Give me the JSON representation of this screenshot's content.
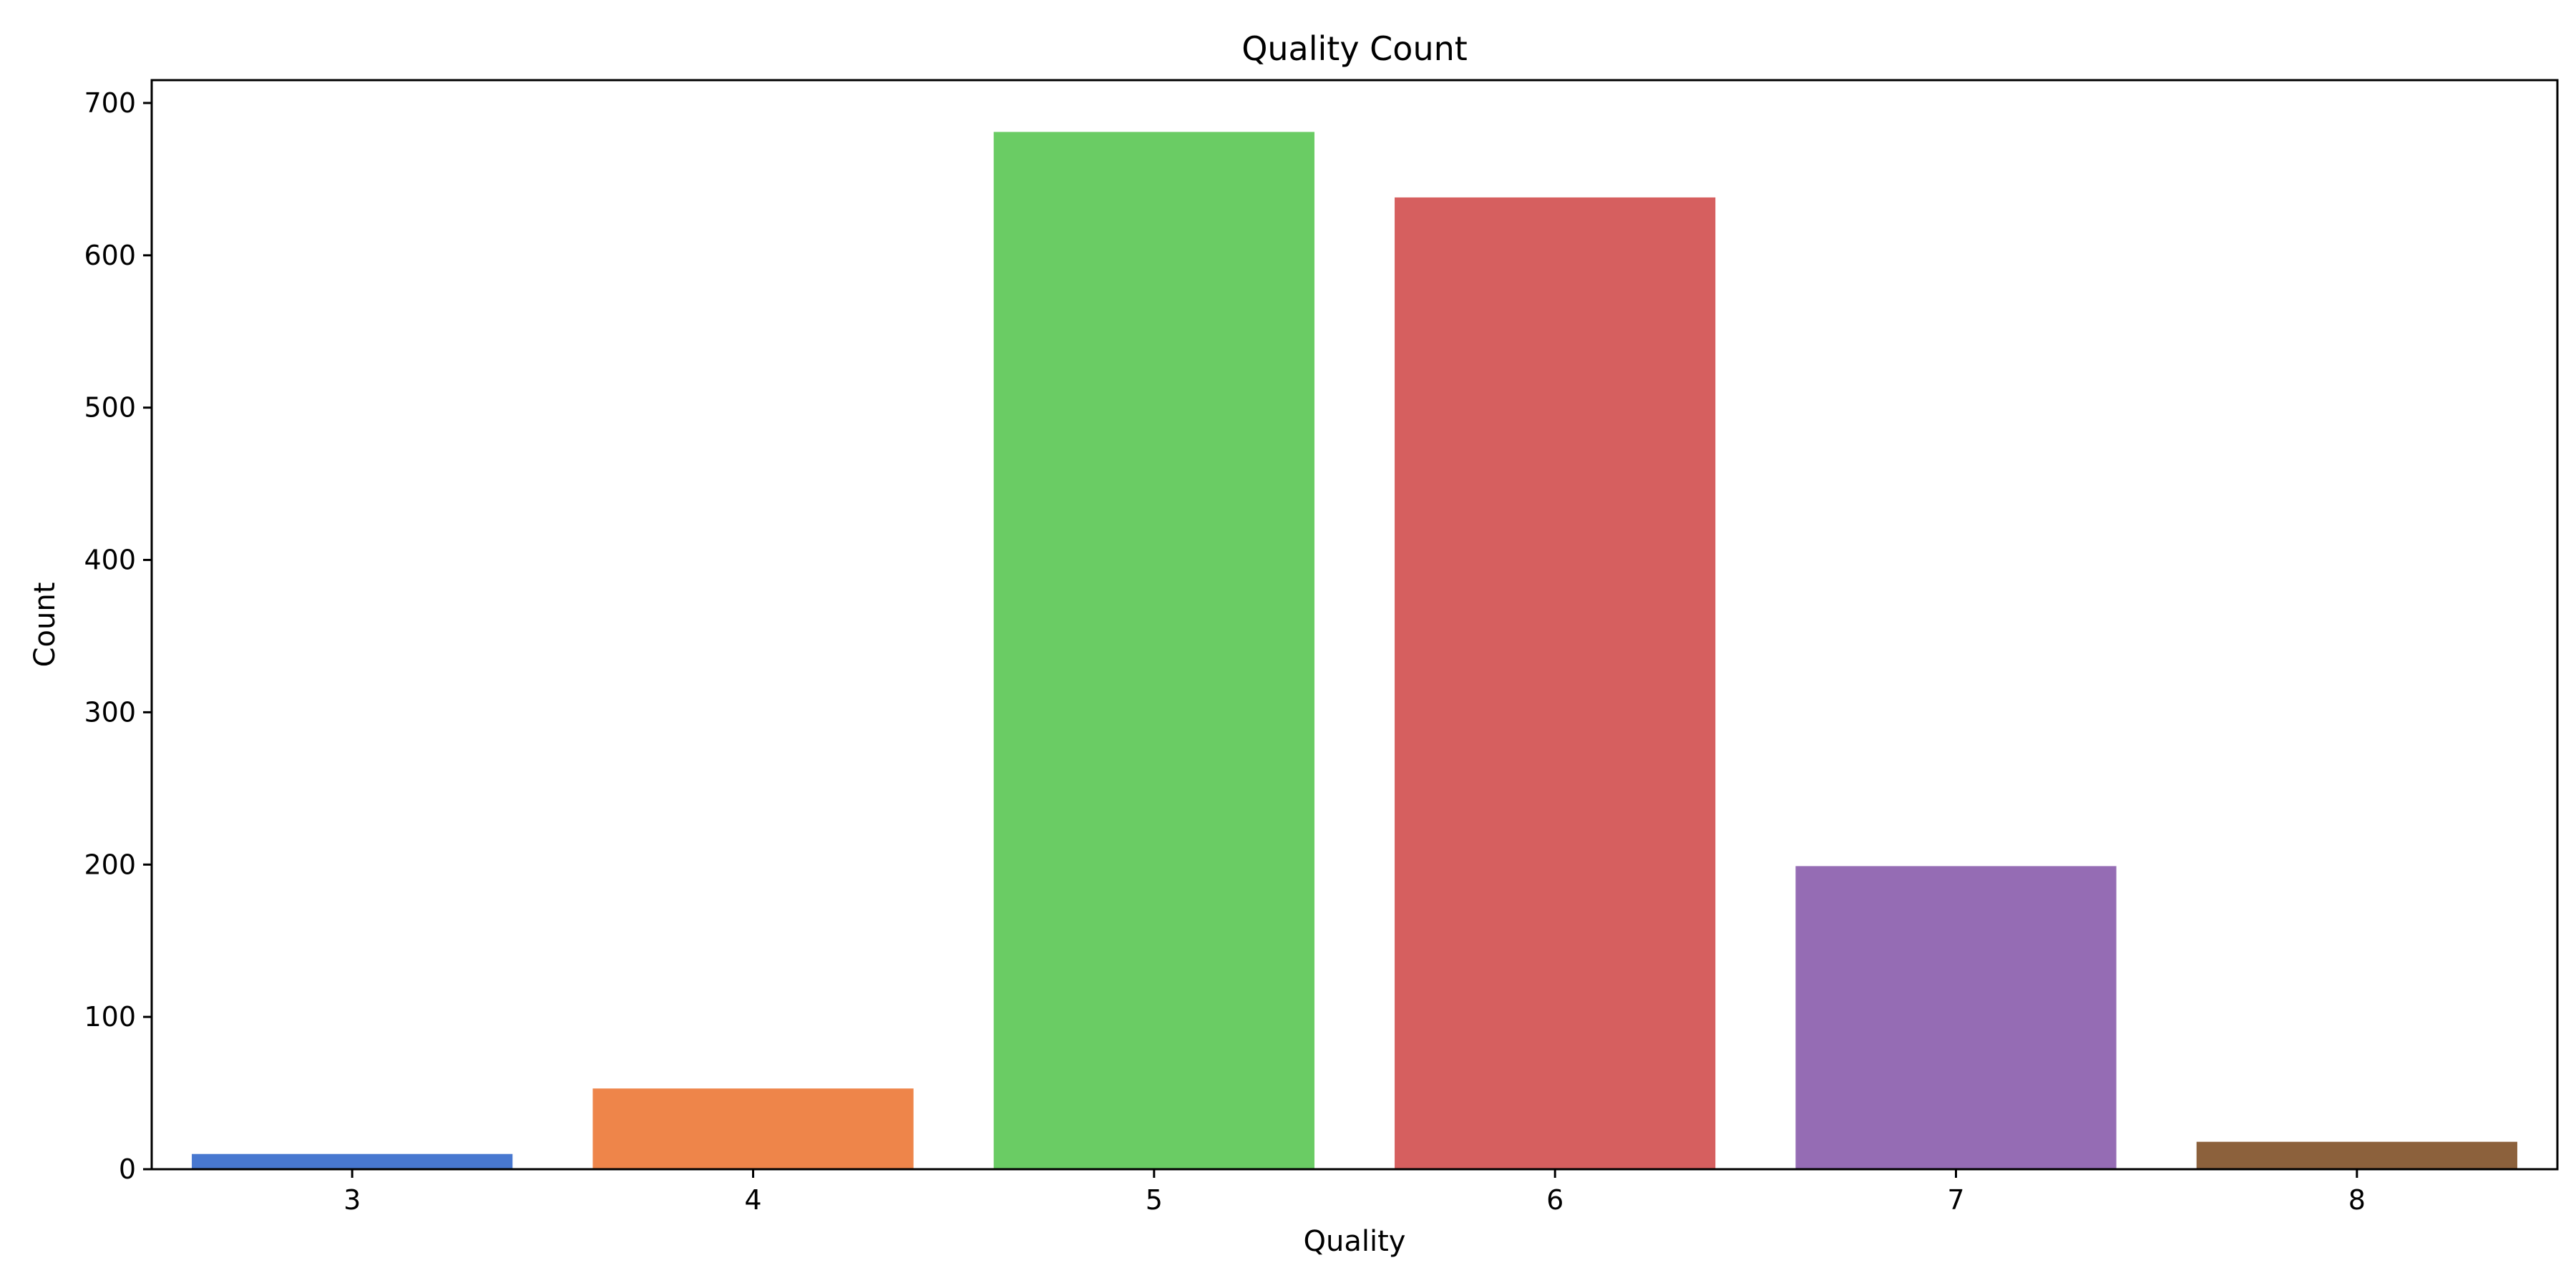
{
  "chart_data": {
    "type": "bar",
    "title": "Quality Count",
    "xlabel": "Quality",
    "ylabel": "Count",
    "categories": [
      "3",
      "4",
      "5",
      "6",
      "7",
      "8"
    ],
    "values": [
      10,
      53,
      681,
      638,
      199,
      18
    ],
    "colors": [
      "#4878d0",
      "#ee854a",
      "#6acc64",
      "#d65f5f",
      "#956cb4",
      "#8c613c"
    ],
    "ylim": [
      0,
      715
    ],
    "yticks": [
      0,
      100,
      200,
      300,
      400,
      500,
      600,
      700
    ],
    "ytick_labels": [
      "0",
      "100",
      "200",
      "300",
      "400",
      "500",
      "600",
      "700"
    ],
    "grid": false,
    "legend": "none"
  }
}
